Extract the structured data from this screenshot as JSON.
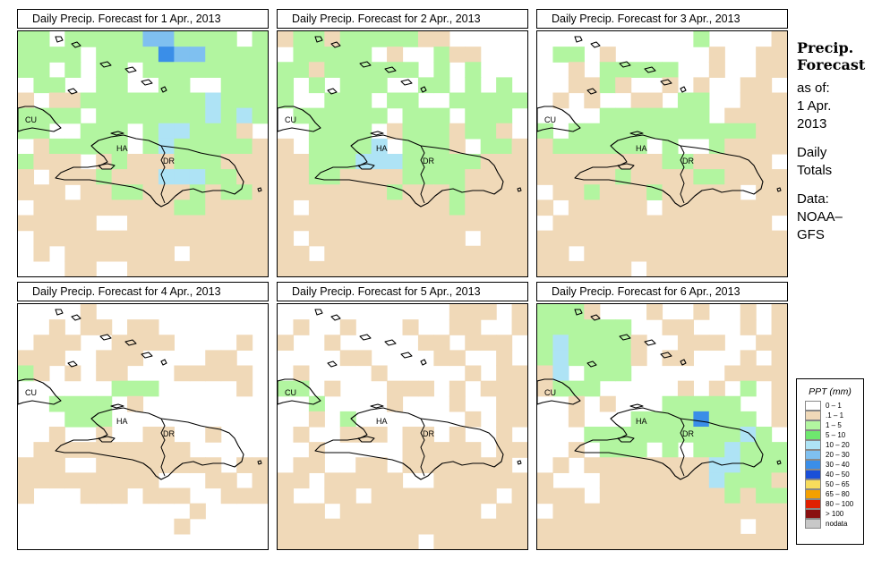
{
  "panels": [
    {
      "title": "Daily Precip. Forecast for  1 Apr., 2013"
    },
    {
      "title": "Daily Precip. Forecast for  2 Apr., 2013"
    },
    {
      "title": "Daily Precip. Forecast for  3 Apr., 2013"
    },
    {
      "title": "Daily Precip. Forecast for  4 Apr., 2013"
    },
    {
      "title": "Daily Precip. Forecast for  5 Apr., 2013"
    },
    {
      "title": "Daily Precip. Forecast for  6 Apr., 2013"
    }
  ],
  "map_labels": {
    "cuba": "CU",
    "haiti": "HA",
    "dominican_republic": "DR"
  },
  "side": {
    "title_line1": "Precip.",
    "title_line2": "Forecast",
    "asof": "as of:",
    "date_line1": "1 Apr.",
    "date_line2": "2013",
    "daily_line1": "Daily",
    "daily_line2": "Totals",
    "data_line1": "Data:",
    "data_line2": "NOAA–",
    "data_line3": "GFS"
  },
  "legend": {
    "title": "PPT (mm)",
    "items": [
      {
        "label": "0 – 1",
        "color": "#ffffff"
      },
      {
        "label": ".1 – 1",
        "color": "#f0d9b8"
      },
      {
        "label": "1 – 5",
        "color": "#b2f5a0"
      },
      {
        "label": "5 – 10",
        "color": "#6ee86e"
      },
      {
        "label": "10 – 20",
        "color": "#aee3f5"
      },
      {
        "label": "20 – 30",
        "color": "#7fc0f0"
      },
      {
        "label": "30 – 40",
        "color": "#3a8ee8"
      },
      {
        "label": "40 – 50",
        "color": "#1a4fd8"
      },
      {
        "label": "50 – 65",
        "color": "#f7dc5c"
      },
      {
        "label": "65 – 80",
        "color": "#f4a000"
      },
      {
        "label": "80 – 100",
        "color": "#e02000"
      },
      {
        "label": "> 100",
        "color": "#8a1010"
      },
      {
        "label": "nodata",
        "color": "#c8c8c8"
      }
    ]
  },
  "grids": [
    [
      "GG.GGGGGBBGGGG.G",
      "GGGG.GGGGKBBGGGG",
      "GG.G.GG.GGGGGGGG",
      ".GG..GG..GG..GGG",
      "T.TTGGGGGGGGHGGG",
      "GGGG.GGGGGGGHGHG",
      "GG..GGG.GHHGGGT.",
      ".TGGGGG.GHGGGGGT",
      "GTTT.TGTTTGGGTTT",
      "T.TTTGTTTHHHGGTT",
      "TTT.TTGGTTTGTGGT",
      ".TTTTTTTTTGGTTTT",
      "TTTTT..TTTTTTTTT",
      ".TTTTTTTTTTTTTTT",
      ".T.TTTTTTT.TTTTT",
      "...TT..TTTTTTTTT"
    ],
    [
      "TGGTGGGGGTT.....",
      ".GGGGG.T..GTT...",
      "GGTGGGGGG.G.G...",
      "G.G.GGG..GG.G.G.",
      "G..GGG.GG..GGGGG",
      ".GGGGGG.GGG.GGG.",
      "..GGGG.TGGGTGGT.",
      "T.GGGGH.GGGT.GGT",
      "TTGGGHHHGGGGGTTT",
      "TTGGTTTTGGGGTTTT",
      "TTTTTTTGTTTGTTTT",
      "T.TTTTTTTTTGTTTT",
      "TTTTTTTTTTTTTTTT",
      "T.TTTTTTTTTT.TTT",
      "TT.TTTTTTTTTTTTT",
      "TTTTTTTTTTTTTTTT"
    ],
    [
      "..........G....T",
      ".GG.T......T..TT",
      "..T.GGGGG..T..TT",
      "..TTGT..T.T..TT.",
      ".T.T..TT.GG..TTT",
      "....GGGGGGG.TTTT",
      "G.GGGGGGGGGGGGTT",
      "TGGGGGG.G..GTTTT",
      "TTTTTTTTGGTTTTT.",
      "TTTTTGTTTTGGTTTT",
      ".TTGTTTGTTTTT.TT",
      "T.TTTTT.TTTTTTTT",
      ".TTTTTTTTTTTTTT.",
      "TTTTTTTTTTTTTTTT",
      "TT.TTTTTTTTTTTTT",
      "TTTTTT.TTTTTTTTT"
    ],
    [
      "....T...........",
      "..T.TT.TT.......",
      ".TTT..TTTT....T.",
      "TTT..TTT....TT..",
      "GT.T.TT...TTTTT.",
      "......GGG.....T.",
      "..GGGG.T........",
      "...GGG..........",
      "..T..T..TT..T...",
      ".TTTTTTTTTT.....",
      "TTT..TTTTTTTT.TT",
      "TTTTTTTTT...TT.T",
      "T...TTT.TTT..TTT",
      "...........T....",
      "..........T.....",
      "................"
    ],
    [
      "...........TTT.T",
      ".T..T...T..TT..T",
      "T..T.....TT.TTT.",
      "....TT....TT..T.",
      ".T....T.....T.TT",
      "GG.T...TTT.T.TTT",
      "..G....T...T..TT",
      "..T.G.......T.TT",
      ".T..TTT.TT.T..T.",
      "..T.....TTTTT.TT",
      ".TT..TT.TTTTTTT.",
      "TT.TTTTT..TTTTTT",
      "T..TT.TTTTTTTT.T",
      "TTT.TTTTTTTTT.TT",
      "TTTTTTTTTTTTTTTT",
      "TTTTTTTTT.TTTTTT"
    ],
    [
      "GGGT...T..T..T.T",
      "GGGGGG..TT...T.T",
      "GHGGGGT..TTT..TT",
      "GHGGGGT.TT...T.T",
      "TH.GGG......TTTT",
      "TGGG.....T.T.G.T",
      "..T.T...GGGGG..T",
      "..T...GGGGKGGG.T",
      "...GGGGGGGGGGHG.",
      "..T.GGG.G.GGHGGG",
      ".T.TTTTTTTTHHGGG",
      "T...TTTTTTTHGGGT",
      "TTT.TTTTTTTTGTGG",
      ".TTTTTTTTTTTTTTT",
      "TTTTTTTTTTTTT.TT",
      "TTTTTTTTTTTTTTTT"
    ]
  ]
}
